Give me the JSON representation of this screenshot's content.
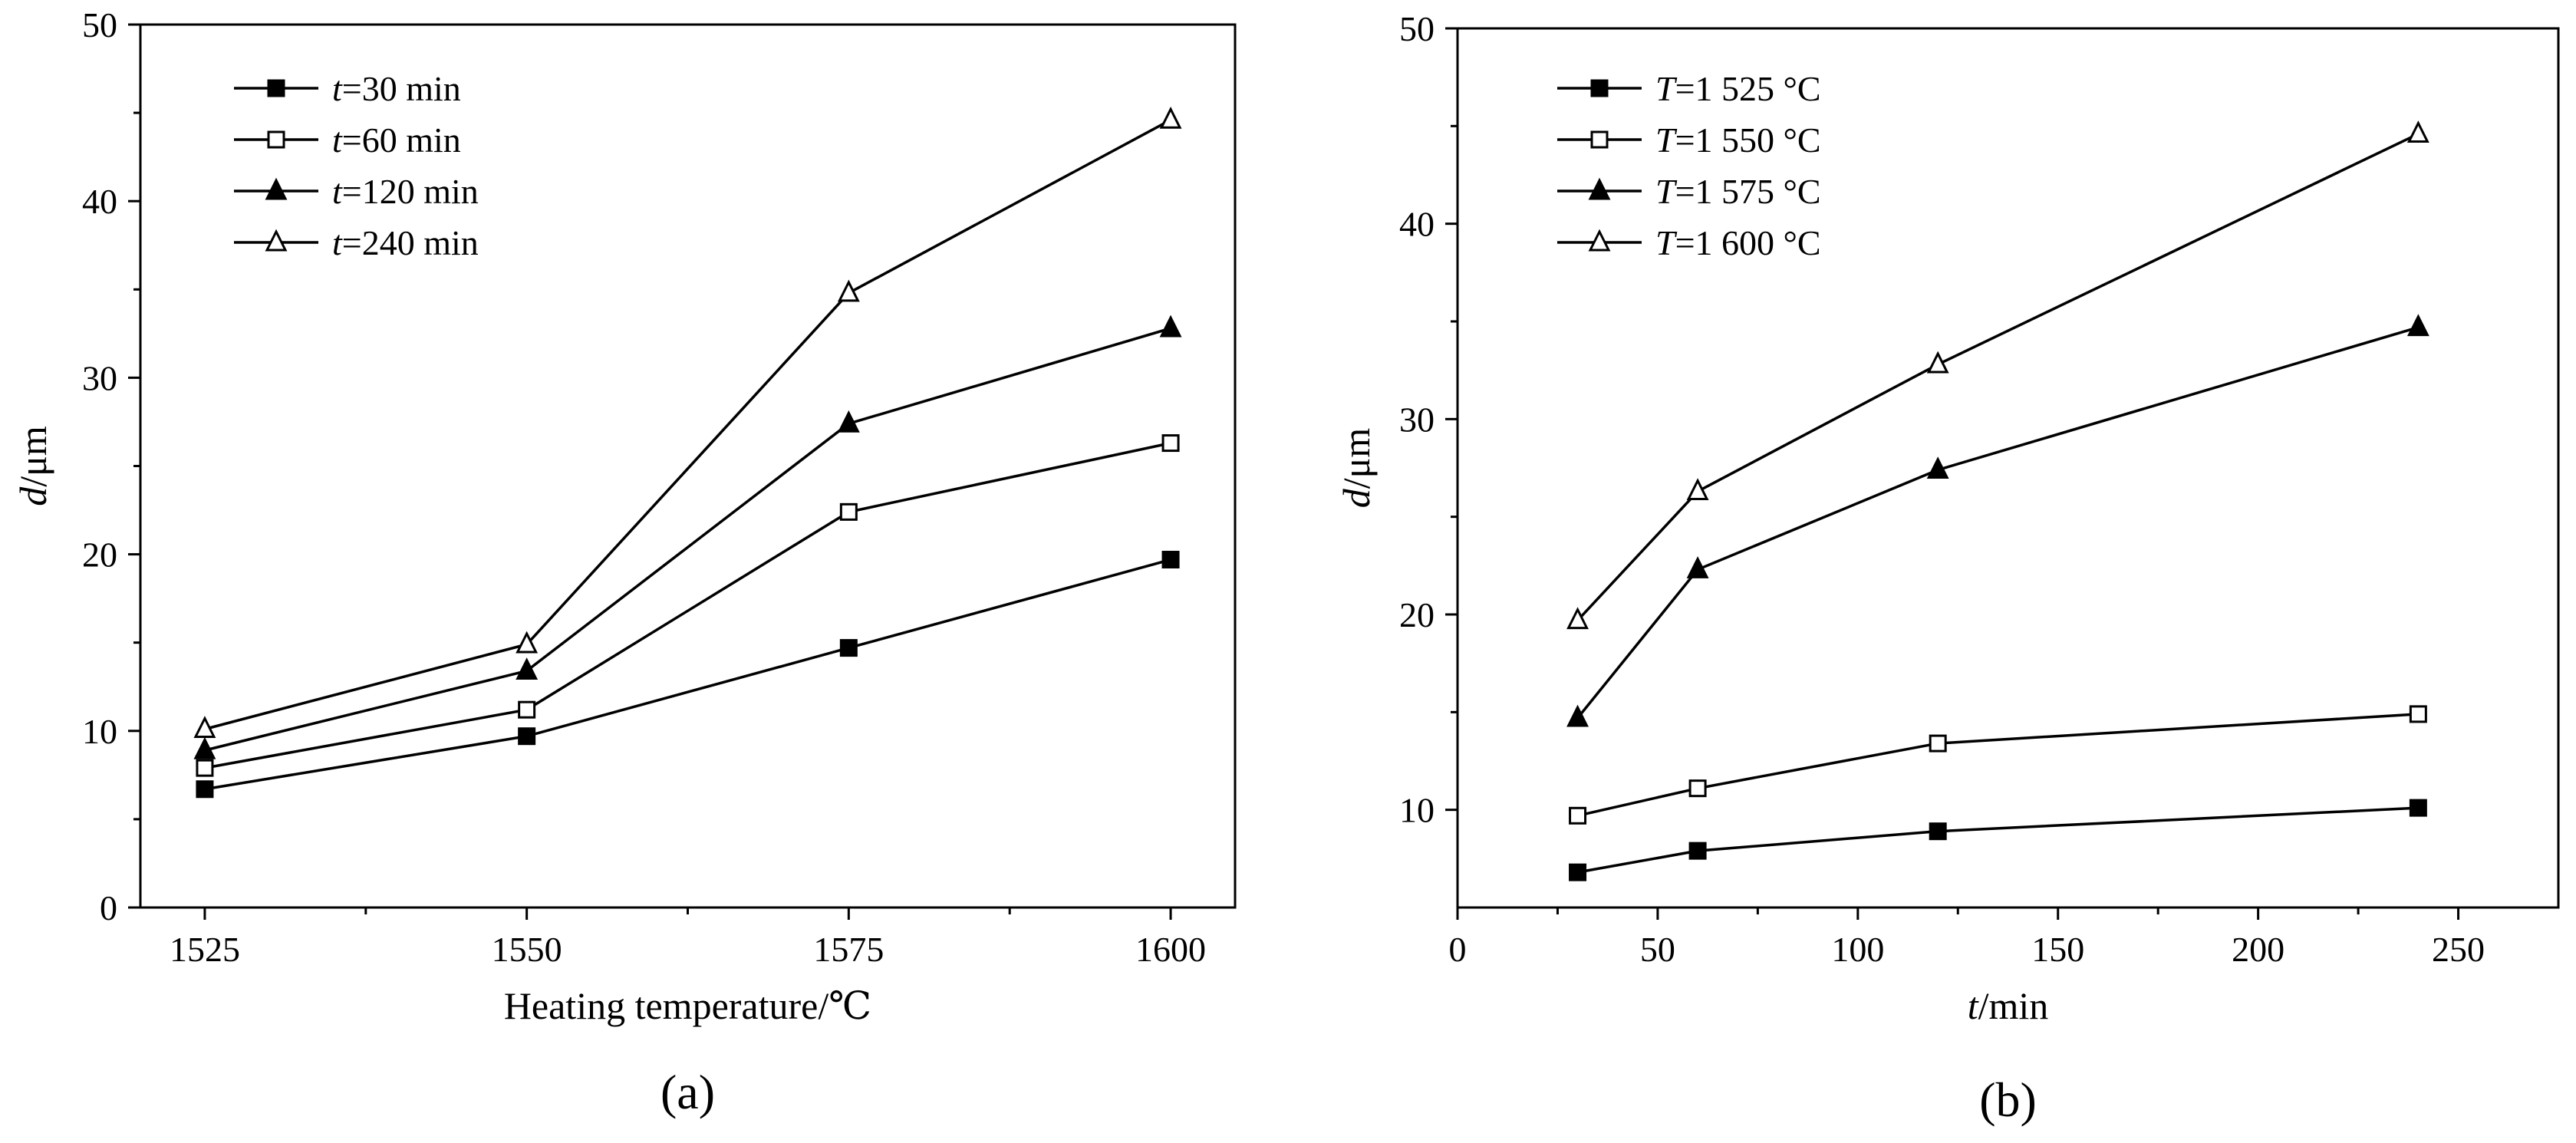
{
  "chart_data": [
    {
      "type": "line",
      "panel_label": "(a)",
      "xlabel": "Heating temperature/℃",
      "ylabel_var": "d",
      "ylabel_unit": "/μm",
      "x": [
        1525,
        1550,
        1575,
        1600
      ],
      "xlim": [
        1520,
        1605
      ],
      "ylim": [
        0,
        50
      ],
      "xticks": [
        1525,
        1550,
        1575,
        1600
      ],
      "xtick_labels": [
        "1525",
        "1550",
        "1575",
        "1600"
      ],
      "yticks": [
        0,
        10,
        20,
        30,
        40,
        50
      ],
      "ytick_labels": [
        "0",
        "10",
        "20",
        "30",
        "40",
        "50"
      ],
      "legend_position": "top-left",
      "series": [
        {
          "name_var": "t",
          "name_rest": "=30 min",
          "marker": "square-filled",
          "values": [
            6.7,
            9.7,
            14.7,
            19.7
          ]
        },
        {
          "name_var": "t",
          "name_rest": "=60 min",
          "marker": "square-open",
          "values": [
            7.9,
            11.2,
            22.4,
            26.3
          ]
        },
        {
          "name_var": "t",
          "name_rest": "=120 min",
          "marker": "triangle-filled",
          "values": [
            8.9,
            13.4,
            27.4,
            32.8
          ]
        },
        {
          "name_var": "t",
          "name_rest": "=240 min",
          "marker": "triangle-open",
          "values": [
            10.1,
            14.9,
            34.8,
            44.6
          ]
        }
      ]
    },
    {
      "type": "line",
      "panel_label": "(b)",
      "xlabel_var": "t",
      "xlabel_unit": "/min",
      "ylabel_var": "d",
      "ylabel_unit": "/μm",
      "x": [
        30,
        60,
        120,
        240
      ],
      "xlim": [
        0,
        275
      ],
      "ylim": [
        5,
        50
      ],
      "xticks": [
        0,
        50,
        100,
        150,
        200,
        250
      ],
      "xtick_labels": [
        "0",
        "50",
        "100",
        "150",
        "200",
        "250"
      ],
      "yticks": [
        10,
        20,
        30,
        40,
        50
      ],
      "ytick_labels": [
        "10",
        "20",
        "30",
        "40",
        "50"
      ],
      "legend_position": "top-left",
      "series": [
        {
          "name_var": "T",
          "name_rest": "=1 525 °C",
          "marker": "square-filled",
          "values": [
            6.8,
            7.9,
            8.9,
            10.1
          ]
        },
        {
          "name_var": "T",
          "name_rest": "=1 550 °C",
          "marker": "square-open",
          "values": [
            9.7,
            11.1,
            13.4,
            14.9
          ]
        },
        {
          "name_var": "T",
          "name_rest": "=1 575 °C",
          "marker": "triangle-filled",
          "values": [
            14.7,
            22.3,
            27.4,
            34.7
          ]
        },
        {
          "name_var": "T",
          "name_rest": "=1 600 °C",
          "marker": "triangle-open",
          "values": [
            19.7,
            26.3,
            32.8,
            44.6
          ]
        }
      ]
    }
  ]
}
